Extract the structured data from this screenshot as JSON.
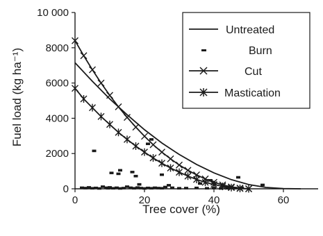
{
  "chart_data": {
    "type": "scatter",
    "xlabel": "Tree cover (%)",
    "ylabel": "Fuel load (kg ha⁻¹)",
    "xlim": [
      0,
      70
    ],
    "ylim": [
      0,
      10000
    ],
    "x_ticks": [
      0,
      20,
      40,
      60
    ],
    "x_tick_labels": [
      "0",
      "20",
      "40",
      "60"
    ],
    "y_ticks": [
      0,
      2000,
      4000,
      6000,
      8000,
      10000
    ],
    "y_tick_labels": [
      "0",
      "2000",
      "4000",
      "6000",
      "8000",
      "10 000"
    ],
    "grid": false,
    "legend_position": "top-right",
    "curves": [
      {
        "name": "Untreated",
        "style": "solid-line",
        "x": [
          0,
          5,
          10,
          15,
          20,
          25,
          30,
          35,
          40,
          45,
          50,
          55,
          60,
          65
        ],
        "y": [
          7150,
          6100,
          5100,
          4200,
          3350,
          2600,
          1950,
          1380,
          900,
          520,
          240,
          80,
          15,
          0
        ]
      },
      {
        "name": "Cut",
        "style": "line-with-x-markers",
        "x": [
          0,
          2.5,
          5,
          7.5,
          10,
          12.5,
          15,
          17.5,
          20,
          22.5,
          25,
          27.5,
          30,
          32.5,
          35,
          37.5,
          40,
          42.5,
          45,
          47.5,
          50
        ],
        "y": [
          8400,
          7550,
          6750,
          6000,
          5300,
          4650,
          4050,
          3500,
          2980,
          2500,
          2080,
          1700,
          1350,
          1050,
          790,
          560,
          370,
          220,
          110,
          40,
          0
        ]
      },
      {
        "name": "Mastication",
        "style": "line-with-asterisk-markers",
        "x": [
          0,
          2.5,
          5,
          7.5,
          10,
          12.5,
          15,
          17.5,
          20,
          22.5,
          25,
          27.5,
          30,
          32.5,
          35,
          37.5,
          40,
          42.5,
          45,
          47.5,
          50
        ],
        "y": [
          5700,
          5100,
          4600,
          4100,
          3650,
          3200,
          2800,
          2420,
          2080,
          1750,
          1450,
          1180,
          940,
          720,
          530,
          370,
          240,
          140,
          70,
          20,
          0
        ]
      }
    ],
    "series": [
      {
        "name": "Burn",
        "marker": "dash",
        "x": [
          2,
          3,
          4,
          5,
          6,
          7,
          8,
          9,
          9.5,
          10,
          11,
          12,
          13,
          14,
          15,
          16,
          17,
          18,
          19,
          20,
          21,
          22,
          23,
          24,
          25,
          26,
          28,
          30,
          32,
          35,
          38,
          40,
          42,
          44,
          46,
          48,
          54,
          5.5,
          10.5,
          12.5,
          13,
          16.5,
          17.5,
          21,
          22,
          18.5,
          25,
          27,
          36,
          39,
          47
        ],
        "y": [
          60,
          40,
          80,
          30,
          50,
          20,
          120,
          60,
          30,
          80,
          30,
          60,
          20,
          40,
          120,
          60,
          30,
          70,
          40,
          20,
          50,
          30,
          60,
          40,
          30,
          100,
          60,
          30,
          40,
          50,
          30,
          40,
          20,
          30,
          40,
          60,
          220,
          2150,
          900,
          850,
          1050,
          950,
          720,
          2550,
          2800,
          250,
          800,
          200,
          300,
          480,
          650
        ]
      }
    ],
    "legend": [
      "Untreated",
      "Burn",
      "Cut",
      "Mastication"
    ],
    "colors": {
      "ink": "#1a1a1a",
      "background": "#ffffff"
    }
  }
}
